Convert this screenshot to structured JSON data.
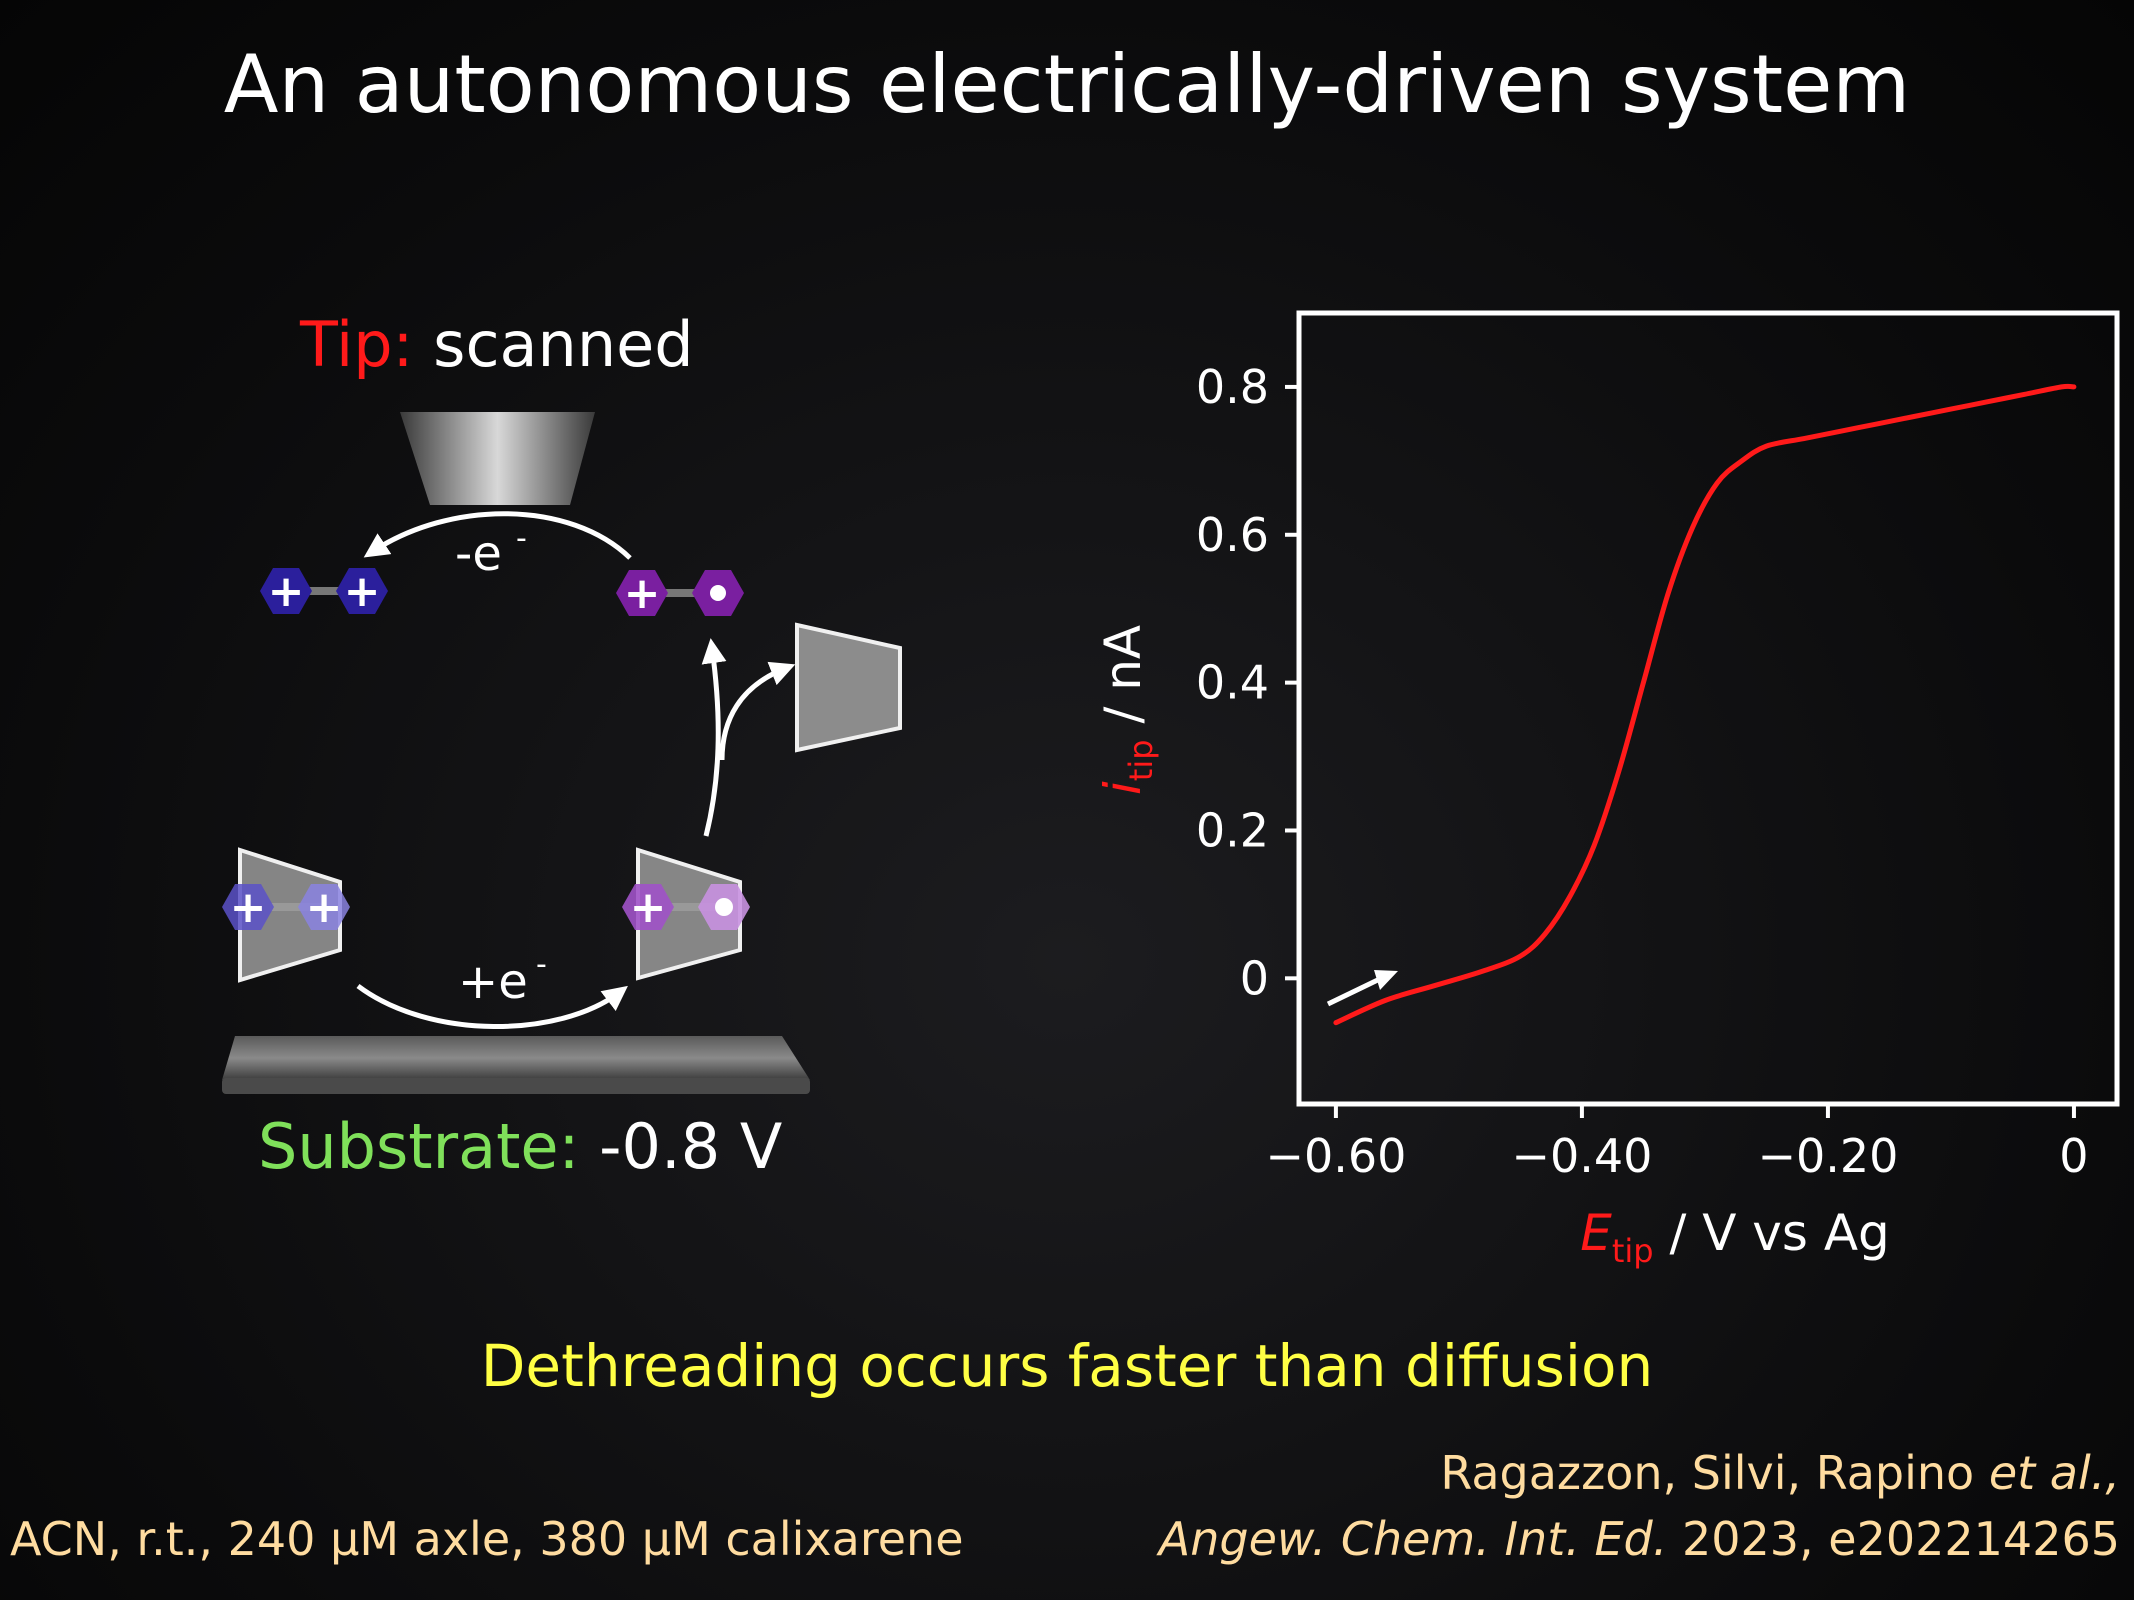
{
  "slide": {
    "title": "An autonomous electrically-driven system",
    "tip_label_prefix": "Tip:",
    "tip_label_value": "scanned",
    "substrate_label_prefix": "Substrate:",
    "substrate_label_value": "-0.8 V",
    "oxidation_label": "-e",
    "reduction_label": "+e",
    "superscript_minus": "-",
    "charge_plus": "+",
    "conclusion": "Dethreading occurs faster than diffusion",
    "conditions": "ACN, r.t., 240 μM axle, 380 μM calixarene",
    "citation_authors_main": "Ragazzon, Silvi, Rapino",
    "citation_authors_etal": "et al.,",
    "citation_journal": "Angew. Chem. Int. Ed.",
    "citation_year_id": "2023, e202214265"
  },
  "colors": {
    "red": "#ff1a1a",
    "green": "#7fe05a",
    "yellow": "#ffff44",
    "peach": "#ffdca0",
    "blue_hex": "#2b1f9c",
    "purple_hex": "#7a1fa0"
  },
  "icons": {
    "tip": "truncated-cone-electrode",
    "substrate": "flat-electrode-slab",
    "ring": "calixarene-trapezoid",
    "axle": "hexagon-pair"
  },
  "chart_data": {
    "type": "line",
    "xlabel_main": "E",
    "xlabel_sub": "tip",
    "xlabel_rest": " / V vs Ag",
    "ylabel_main": "i",
    "ylabel_sub": "tip",
    "ylabel_rest": " / nA",
    "xlim": [
      -0.63,
      0.035
    ],
    "ylim": [
      -0.17,
      0.9
    ],
    "x_ticks": [
      -0.6,
      -0.4,
      -0.2,
      0
    ],
    "x_tick_labels": [
      "−0.60",
      "−0.40",
      "−0.20",
      "0"
    ],
    "y_ticks": [
      0,
      0.2,
      0.4,
      0.6,
      0.8
    ],
    "y_tick_labels": [
      "0",
      "0.2",
      "0.4",
      "0.6",
      "0.8"
    ],
    "series": [
      {
        "color": "#ff1a1a",
        "x": [
          -0.6,
          -0.56,
          -0.52,
          -0.48,
          -0.45,
          -0.43,
          -0.41,
          -0.39,
          -0.37,
          -0.35,
          -0.33,
          -0.31,
          -0.29,
          -0.27,
          -0.25,
          -0.22,
          -0.19,
          -0.16,
          -0.13,
          -0.1,
          -0.07,
          -0.04,
          -0.01,
          0.0
        ],
        "y": [
          -0.06,
          -0.03,
          -0.01,
          0.01,
          0.03,
          0.06,
          0.11,
          0.18,
          0.28,
          0.4,
          0.52,
          0.61,
          0.67,
          0.7,
          0.72,
          0.73,
          0.74,
          0.75,
          0.76,
          0.77,
          0.78,
          0.79,
          0.8,
          0.8
        ]
      }
    ],
    "annotation": "arrow pointing along increasing potential near the curve start"
  }
}
